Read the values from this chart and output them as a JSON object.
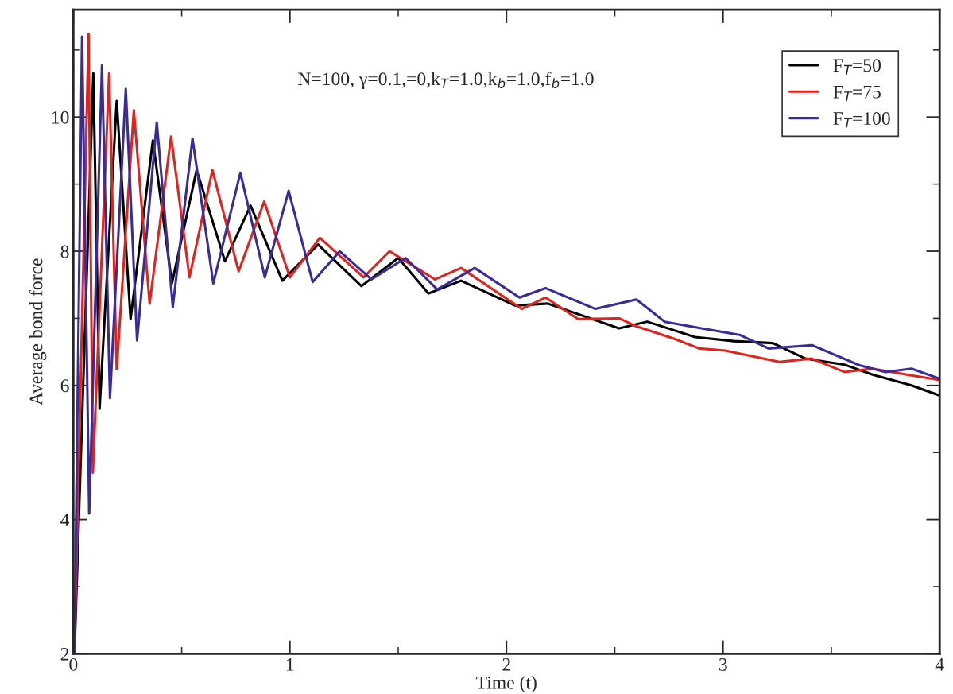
{
  "chart_data": {
    "type": "line",
    "xlabel": "Time (t)",
    "ylabel": "Average bond force",
    "annotations": [
      "N=100, γ=0.1,=0,k$_{T}$=1.0,k$_{b}$=1.0,f$_{b}$=1.0"
    ],
    "xlim": [
      0,
      4
    ],
    "ylim": [
      2,
      11.6
    ],
    "xticks": [
      0,
      {
        "value": 0.5,
        "label": null
      },
      1,
      {
        "value": 1.5,
        "label": null
      },
      2,
      {
        "value": 2.5,
        "label": null
      },
      3,
      {
        "value": 3.5,
        "label": null
      },
      4
    ],
    "yticks": [
      2,
      {
        "value": 3,
        "label": null
      },
      4,
      {
        "value": 5,
        "label": null
      },
      6,
      {
        "value": 7,
        "label": null
      },
      8,
      {
        "value": 9,
        "label": null
      },
      10,
      {
        "value": 11,
        "label": null
      }
    ],
    "legend": "top right",
    "grid": false,
    "line_style": "solid",
    "marker": "none",
    "series": [
      {
        "name": "F$_{T}$=50",
        "color": "#000000",
        "x": [
          0.005,
          0.092,
          0.121,
          0.2,
          0.264,
          0.367,
          0.455,
          0.569,
          0.7,
          0.818,
          0.965,
          1.13,
          1.33,
          1.5,
          1.64,
          1.79,
          2.04,
          2.19,
          2.52,
          2.65,
          2.87,
          3.05,
          3.23,
          3.38,
          3.56,
          3.69,
          3.87,
          4.0
        ],
        "values": [
          2.0,
          10.65,
          5.65,
          10.24,
          6.99,
          9.65,
          7.52,
          9.21,
          7.85,
          8.68,
          7.56,
          8.1,
          7.48,
          7.9,
          7.37,
          7.56,
          7.19,
          7.22,
          6.85,
          6.95,
          6.72,
          6.66,
          6.63,
          6.4,
          6.31,
          6.16,
          6.0,
          5.85
        ]
      },
      {
        "name": "F$_{T}$=75",
        "color": "#e0231c",
        "x": [
          0.005,
          0.07,
          0.09,
          0.165,
          0.2,
          0.279,
          0.352,
          0.451,
          0.536,
          0.642,
          0.763,
          0.881,
          1.0,
          1.138,
          1.34,
          1.46,
          1.67,
          1.79,
          2.07,
          2.18,
          2.33,
          2.52,
          2.6,
          2.77,
          2.89,
          3.01,
          3.26,
          3.41,
          3.56,
          3.69,
          3.87,
          4.0
        ],
        "values": [
          2.0,
          11.24,
          4.7,
          10.65,
          6.24,
          10.1,
          7.22,
          9.71,
          7.61,
          9.21,
          7.7,
          8.74,
          7.61,
          8.2,
          7.61,
          8.0,
          7.58,
          7.75,
          7.14,
          7.31,
          6.99,
          7.0,
          6.88,
          6.7,
          6.55,
          6.52,
          6.35,
          6.4,
          6.2,
          6.25,
          6.15,
          6.08
        ]
      },
      {
        "name": "F$_{T}$=100",
        "color": "#3c2a96",
        "x": [
          0.005,
          0.04,
          0.073,
          0.132,
          0.169,
          0.242,
          0.294,
          0.385,
          0.459,
          0.55,
          0.646,
          0.771,
          0.884,
          0.994,
          1.105,
          1.23,
          1.376,
          1.534,
          1.68,
          1.853,
          2.06,
          2.18,
          2.41,
          2.6,
          2.73,
          2.9,
          3.08,
          3.21,
          3.41,
          3.63,
          3.75,
          3.87,
          4.0
        ],
        "values": [
          2.0,
          11.2,
          4.09,
          10.77,
          5.81,
          10.42,
          6.67,
          9.92,
          7.17,
          9.68,
          7.52,
          9.17,
          7.61,
          8.9,
          7.54,
          8.0,
          7.58,
          7.9,
          7.43,
          7.75,
          7.31,
          7.45,
          7.14,
          7.28,
          6.95,
          6.85,
          6.75,
          6.55,
          6.6,
          6.3,
          6.2,
          6.25,
          6.1
        ]
      }
    ]
  }
}
